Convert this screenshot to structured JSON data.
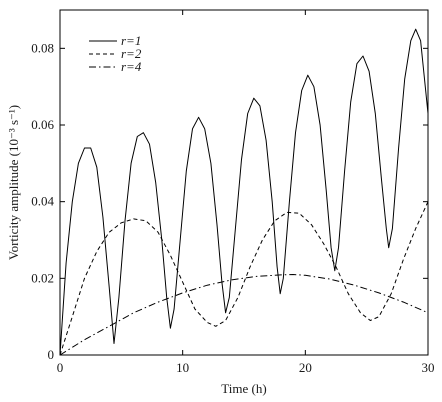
{
  "chart_data": {
    "type": "line",
    "title": "",
    "xlabel": "Time (h)",
    "ylabel": "Vorticity amplitude (10⁻³ s⁻¹)",
    "xlim": [
      0,
      30
    ],
    "ylim": [
      0,
      0.09
    ],
    "xticks": [
      0,
      10,
      20,
      30
    ],
    "yticks": [
      0,
      0.02,
      0.04,
      0.06,
      0.08
    ],
    "xtick_labels": [
      "0",
      "10",
      "20",
      "30"
    ],
    "ytick_labels": [
      "0",
      "0.02",
      "0.04",
      "0.06",
      "0.08"
    ],
    "grid": false,
    "legend_position": "top-left",
    "series": [
      {
        "name": "r=1",
        "legend_label": "r=1",
        "style": "solid",
        "color": "#000000",
        "points": [
          [
            0,
            0
          ],
          [
            0.5,
            0.024
          ],
          [
            1,
            0.04
          ],
          [
            1.5,
            0.05
          ],
          [
            2,
            0.054
          ],
          [
            2.5,
            0.054
          ],
          [
            3,
            0.049
          ],
          [
            3.5,
            0.036
          ],
          [
            4,
            0.018
          ],
          [
            4.4,
            0.003
          ],
          [
            4.8,
            0.015
          ],
          [
            5.3,
            0.035
          ],
          [
            5.8,
            0.05
          ],
          [
            6.3,
            0.057
          ],
          [
            6.8,
            0.058
          ],
          [
            7.3,
            0.055
          ],
          [
            7.8,
            0.045
          ],
          [
            8.3,
            0.03
          ],
          [
            8.7,
            0.015
          ],
          [
            9,
            0.007
          ],
          [
            9.3,
            0.012
          ],
          [
            9.8,
            0.03
          ],
          [
            10.3,
            0.048
          ],
          [
            10.8,
            0.059
          ],
          [
            11.3,
            0.062
          ],
          [
            11.8,
            0.059
          ],
          [
            12.3,
            0.05
          ],
          [
            12.8,
            0.034
          ],
          [
            13.2,
            0.019
          ],
          [
            13.5,
            0.011
          ],
          [
            13.8,
            0.015
          ],
          [
            14.3,
            0.033
          ],
          [
            14.8,
            0.051
          ],
          [
            15.3,
            0.063
          ],
          [
            15.8,
            0.067
          ],
          [
            16.3,
            0.065
          ],
          [
            16.8,
            0.056
          ],
          [
            17.3,
            0.04
          ],
          [
            17.7,
            0.023
          ],
          [
            17.95,
            0.016
          ],
          [
            18.2,
            0.02
          ],
          [
            18.7,
            0.04
          ],
          [
            19.2,
            0.058
          ],
          [
            19.7,
            0.069
          ],
          [
            20.2,
            0.073
          ],
          [
            20.7,
            0.07
          ],
          [
            21.2,
            0.06
          ],
          [
            21.7,
            0.043
          ],
          [
            22.1,
            0.028
          ],
          [
            22.4,
            0.022
          ],
          [
            22.7,
            0.028
          ],
          [
            23.2,
            0.048
          ],
          [
            23.7,
            0.066
          ],
          [
            24.2,
            0.076
          ],
          [
            24.7,
            0.078
          ],
          [
            25.2,
            0.074
          ],
          [
            25.7,
            0.063
          ],
          [
            26.2,
            0.046
          ],
          [
            26.6,
            0.033
          ],
          [
            26.8,
            0.028
          ],
          [
            27.1,
            0.033
          ],
          [
            27.6,
            0.054
          ],
          [
            28.1,
            0.072
          ],
          [
            28.6,
            0.082
          ],
          [
            29,
            0.085
          ],
          [
            29.4,
            0.082
          ],
          [
            30,
            0.063
          ]
        ]
      },
      {
        "name": "r=2",
        "legend_label": "r=2",
        "style": "dashed",
        "color": "#000000",
        "points": [
          [
            0,
            0
          ],
          [
            1,
            0.01
          ],
          [
            2,
            0.02
          ],
          [
            3,
            0.027
          ],
          [
            4,
            0.032
          ],
          [
            5,
            0.0345
          ],
          [
            6,
            0.0355
          ],
          [
            7,
            0.035
          ],
          [
            8,
            0.032
          ],
          [
            9,
            0.026
          ],
          [
            10,
            0.019
          ],
          [
            11,
            0.012
          ],
          [
            12,
            0.0085
          ],
          [
            12.7,
            0.0075
          ],
          [
            13.5,
            0.009
          ],
          [
            14.5,
            0.015
          ],
          [
            15.5,
            0.023
          ],
          [
            16.5,
            0.03
          ],
          [
            17.5,
            0.035
          ],
          [
            18.5,
            0.0372
          ],
          [
            19.5,
            0.037
          ],
          [
            20.5,
            0.034
          ],
          [
            21.5,
            0.029
          ],
          [
            22.5,
            0.023
          ],
          [
            23.5,
            0.016
          ],
          [
            24.5,
            0.011
          ],
          [
            25.3,
            0.009
          ],
          [
            26,
            0.01
          ],
          [
            27,
            0.016
          ],
          [
            28,
            0.025
          ],
          [
            29,
            0.033
          ],
          [
            30,
            0.04
          ]
        ]
      },
      {
        "name": "r=4",
        "legend_label": "r=4",
        "style": "dashdot",
        "color": "#000000",
        "points": [
          [
            0,
            0
          ],
          [
            2,
            0.004
          ],
          [
            4,
            0.0075
          ],
          [
            6,
            0.011
          ],
          [
            8,
            0.0138
          ],
          [
            10,
            0.0162
          ],
          [
            12,
            0.0182
          ],
          [
            14,
            0.0196
          ],
          [
            16,
            0.0205
          ],
          [
            18,
            0.0209
          ],
          [
            19,
            0.021
          ],
          [
            20,
            0.0208
          ],
          [
            22,
            0.0198
          ],
          [
            24,
            0.0182
          ],
          [
            26,
            0.0162
          ],
          [
            28,
            0.0138
          ],
          [
            30,
            0.011
          ]
        ]
      }
    ]
  }
}
